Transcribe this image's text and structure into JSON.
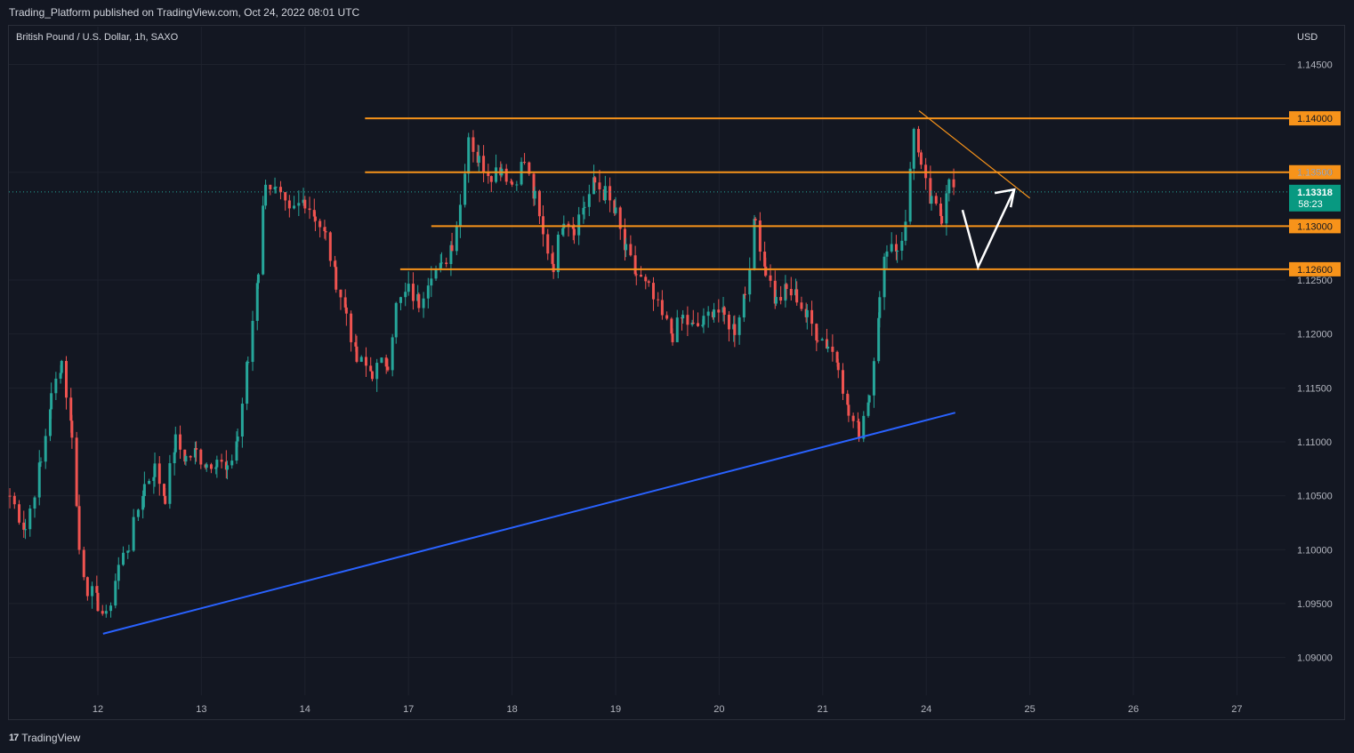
{
  "header": {
    "published": "Trading_Platform published on TradingView.com, Oct 24, 2022 08:01 UTC"
  },
  "footer": {
    "brand": "TradingView",
    "logo": "17"
  },
  "chart_data": {
    "type": "candlestick",
    "title": "British Pound / U.S. Dollar, 1h, SAXO",
    "currency": "USD",
    "ylim": [
      1.0865,
      1.1485
    ],
    "y_ticks": [
      "1.14500",
      "1.13500",
      "1.12500",
      "1.12000",
      "1.11500",
      "1.11000",
      "1.10500",
      "1.10000",
      "1.09500",
      "1.09000"
    ],
    "x_ticks": [
      "12",
      "13",
      "14",
      "17",
      "18",
      "19",
      "20",
      "21",
      "24",
      "25",
      "26",
      "27"
    ],
    "x_range": [
      -0.85,
      11.55
    ],
    "grid": true,
    "colors": {
      "up": "#26a69a",
      "down": "#ef5350",
      "level": "#f7931a",
      "trend": "#2962ff",
      "arrow": "#ffffff"
    },
    "horizontal_levels": [
      {
        "label": "1.14000",
        "price": 1.14,
        "x_start": 2.58
      },
      {
        "label": "1.13500",
        "price": 1.135,
        "x_start": 2.58
      },
      {
        "label": "1.13000",
        "price": 1.13,
        "x_start": 3.22
      },
      {
        "label": "1.12600",
        "price": 1.126,
        "x_start": 2.92
      }
    ],
    "current_price": {
      "price": "1.13318",
      "countdown": "58:23",
      "value": 1.13318
    },
    "trendline": {
      "x1": 0.05,
      "y1": 1.0922,
      "x2": 8.28,
      "y2": 1.1127
    },
    "resistance_line": {
      "x1": 7.93,
      "y1": 1.1407,
      "x2": 9.0,
      "y2": 1.1326
    },
    "projection_arrow": [
      [
        8.35,
        1.1315
      ],
      [
        8.5,
        1.1262
      ],
      [
        8.85,
        1.1334
      ]
    ],
    "candles_anchor": [
      [
        -0.85,
        1.105
      ],
      [
        -0.7,
        1.102
      ],
      [
        -0.55,
        1.108
      ],
      [
        -0.45,
        1.114
      ],
      [
        -0.35,
        1.1175
      ],
      [
        -0.25,
        1.111
      ],
      [
        -0.18,
        1.1
      ],
      [
        -0.1,
        1.0965
      ],
      [
        0.0,
        1.095
      ],
      [
        0.08,
        1.0935
      ],
      [
        0.2,
        1.0985
      ],
      [
        0.3,
        1.1005
      ],
      [
        0.45,
        1.106
      ],
      [
        0.55,
        1.1075
      ],
      [
        0.65,
        1.105
      ],
      [
        0.75,
        1.11
      ],
      [
        0.85,
        1.1085
      ],
      [
        0.95,
        1.109
      ],
      [
        1.05,
        1.108
      ],
      [
        1.15,
        1.1085
      ],
      [
        1.25,
        1.107
      ],
      [
        1.35,
        1.1105
      ],
      [
        1.45,
        1.1175
      ],
      [
        1.55,
        1.126
      ],
      [
        1.62,
        1.1345
      ],
      [
        1.72,
        1.133
      ],
      [
        1.85,
        1.131
      ],
      [
        2.0,
        1.1325
      ],
      [
        2.1,
        1.131
      ],
      [
        2.2,
        1.129
      ],
      [
        2.3,
        1.125
      ],
      [
        2.4,
        1.122
      ],
      [
        2.5,
        1.1175
      ],
      [
        2.65,
        1.1165
      ],
      [
        2.8,
        1.1175
      ],
      [
        2.88,
        1.1225
      ],
      [
        3.0,
        1.124
      ],
      [
        3.1,
        1.123
      ],
      [
        3.22,
        1.126
      ],
      [
        3.32,
        1.126
      ],
      [
        3.42,
        1.1285
      ],
      [
        3.5,
        1.132
      ],
      [
        3.58,
        1.1385
      ],
      [
        3.68,
        1.136
      ],
      [
        3.8,
        1.135
      ],
      [
        3.9,
        1.1355
      ],
      [
        4.0,
        1.134
      ],
      [
        4.12,
        1.136
      ],
      [
        4.22,
        1.1325
      ],
      [
        4.3,
        1.129
      ],
      [
        4.4,
        1.1265
      ],
      [
        4.5,
        1.131
      ],
      [
        4.6,
        1.13
      ],
      [
        4.7,
        1.132
      ],
      [
        4.8,
        1.134
      ],
      [
        4.9,
        1.133
      ],
      [
        5.0,
        1.131
      ],
      [
        5.1,
        1.1275
      ],
      [
        5.2,
        1.1255
      ],
      [
        5.32,
        1.124
      ],
      [
        5.45,
        1.1215
      ],
      [
        5.55,
        1.12
      ],
      [
        5.65,
        1.1215
      ],
      [
        5.75,
        1.1205
      ],
      [
        5.85,
        1.121
      ],
      [
        5.95,
        1.1225
      ],
      [
        6.05,
        1.1215
      ],
      [
        6.15,
        1.1205
      ],
      [
        6.25,
        1.124
      ],
      [
        6.35,
        1.1305
      ],
      [
        6.45,
        1.126
      ],
      [
        6.55,
        1.123
      ],
      [
        6.65,
        1.124
      ],
      [
        6.75,
        1.1235
      ],
      [
        6.85,
        1.1215
      ],
      [
        6.95,
        1.12
      ],
      [
        7.05,
        1.119
      ],
      [
        7.15,
        1.1175
      ],
      [
        7.25,
        1.1125
      ],
      [
        7.35,
        1.111
      ],
      [
        7.45,
        1.1145
      ],
      [
        7.55,
        1.123
      ],
      [
        7.62,
        1.1285
      ],
      [
        7.72,
        1.128
      ],
      [
        7.8,
        1.13
      ],
      [
        7.88,
        1.1395
      ],
      [
        7.95,
        1.135
      ],
      [
        8.05,
        1.132
      ],
      [
        8.15,
        1.131
      ],
      [
        8.22,
        1.135
      ],
      [
        8.3,
        1.1318
      ]
    ]
  }
}
